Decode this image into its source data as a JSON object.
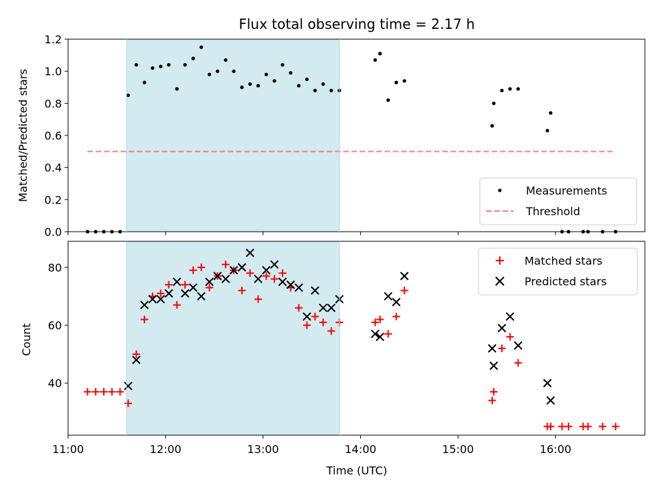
{
  "chart_data": [
    {
      "type": "scatter",
      "title": "Flux total observing time = 2.17 h",
      "xlabel": "",
      "ylabel": "Matched/Predicted stars",
      "xlim": [
        "11:00",
        "16:55"
      ],
      "ylim": [
        0,
        1.2
      ],
      "yticks": [
        0.0,
        0.2,
        0.4,
        0.6,
        0.8,
        1.0,
        1.2
      ],
      "ytick_labels": [
        "0.0",
        "0.2",
        "0.4",
        "0.6",
        "0.8",
        "1.0",
        "1.2"
      ],
      "grid": false,
      "shaded_interval": {
        "x0": "11:36",
        "x1": "13:47",
        "color": "#d3eaf0"
      },
      "threshold": {
        "name": "Threshold",
        "y": 0.5,
        "x0": "11:12",
        "x1": "16:35",
        "color": "#f08080"
      },
      "legend": {
        "placement": "lower-right"
      },
      "series": [
        {
          "name": "Measurements",
          "marker": "dot",
          "color": "#000000",
          "x": [
            "11:12",
            "11:17",
            "11:22",
            "11:27",
            "11:32",
            "11:37",
            "11:42",
            "11:47",
            "11:52",
            "11:57",
            "12:02",
            "12:07",
            "12:12",
            "12:17",
            "12:22",
            "12:27",
            "12:32",
            "12:37",
            "12:42",
            "12:47",
            "12:52",
            "12:57",
            "13:02",
            "13:07",
            "13:12",
            "13:17",
            "13:22",
            "13:27",
            "13:32",
            "13:37",
            "13:42",
            "13:47",
            "14:09",
            "14:12",
            "14:17",
            "14:22",
            "14:27",
            "15:21",
            "15:22",
            "15:27",
            "15:32",
            "15:37",
            "15:55",
            "15:57",
            "16:04",
            "16:08",
            "16:17",
            "16:20",
            "16:29",
            "16:37"
          ],
          "y": [
            0.0,
            0.0,
            0.0,
            0.0,
            0.0,
            0.85,
            1.04,
            0.93,
            1.02,
            1.03,
            1.04,
            0.89,
            1.04,
            1.08,
            1.15,
            0.98,
            1.0,
            1.07,
            1.0,
            0.9,
            0.92,
            0.91,
            0.98,
            0.94,
            1.04,
            0.99,
            0.91,
            0.95,
            0.88,
            0.92,
            0.88,
            0.88,
            1.07,
            1.11,
            0.82,
            0.93,
            0.94,
            0.66,
            0.8,
            0.88,
            0.89,
            0.89,
            0.63,
            0.74,
            0.0,
            0.0,
            0.0,
            0.0,
            0.0,
            0.0
          ]
        }
      ]
    },
    {
      "type": "scatter",
      "title": "",
      "xlabel": "Time (UTC)",
      "ylabel": "Count",
      "xlim": [
        "11:00",
        "16:55"
      ],
      "ylim": [
        22,
        89
      ],
      "xticks": [
        "11:00",
        "12:00",
        "13:00",
        "14:00",
        "15:00",
        "16:00"
      ],
      "yticks": [
        40,
        60,
        80
      ],
      "ytick_labels": [
        "40",
        "60",
        "80"
      ],
      "grid": false,
      "shaded_interval": {
        "x0": "11:36",
        "x1": "13:47",
        "color": "#d3eaf0"
      },
      "legend": {
        "placement": "upper-right"
      },
      "series": [
        {
          "name": "Matched stars",
          "marker": "plus",
          "color": "#ff0000",
          "x": [
            "11:12",
            "11:17",
            "11:22",
            "11:27",
            "11:32",
            "11:37",
            "11:42",
            "11:47",
            "11:52",
            "11:57",
            "12:02",
            "12:07",
            "12:12",
            "12:17",
            "12:22",
            "12:27",
            "12:32",
            "12:37",
            "12:42",
            "12:47",
            "12:52",
            "12:57",
            "13:02",
            "13:07",
            "13:12",
            "13:17",
            "13:22",
            "13:27",
            "13:32",
            "13:37",
            "13:42",
            "13:47",
            "14:09",
            "14:12",
            "14:17",
            "14:22",
            "14:27",
            "15:21",
            "15:22",
            "15:27",
            "15:32",
            "15:37",
            "15:55",
            "15:57",
            "16:04",
            "16:08",
            "16:17",
            "16:20",
            "16:29",
            "16:37"
          ],
          "y": [
            37,
            37,
            37,
            37,
            37,
            33,
            50,
            62,
            70,
            71,
            74,
            67,
            74,
            79,
            80,
            73,
            77,
            81,
            79,
            72,
            78,
            69,
            77,
            76,
            78,
            73,
            66,
            60,
            63,
            61,
            58,
            61,
            61,
            62,
            57,
            63,
            72,
            34,
            37,
            52,
            56,
            47,
            25,
            25,
            25,
            25,
            25,
            25,
            25,
            25
          ]
        },
        {
          "name": "Predicted stars",
          "marker": "x",
          "color": "#000000",
          "x": [
            "11:37",
            "11:42",
            "11:47",
            "11:52",
            "11:57",
            "12:02",
            "12:07",
            "12:12",
            "12:17",
            "12:22",
            "12:27",
            "12:32",
            "12:37",
            "12:42",
            "12:47",
            "12:52",
            "12:57",
            "13:02",
            "13:07",
            "13:12",
            "13:17",
            "13:22",
            "13:27",
            "13:32",
            "13:37",
            "13:42",
            "13:47",
            "14:09",
            "14:12",
            "14:17",
            "14:22",
            "14:27",
            "15:21",
            "15:22",
            "15:27",
            "15:32",
            "15:37",
            "15:55",
            "15:57"
          ],
          "y": [
            39,
            48,
            67,
            69,
            69,
            71,
            75,
            71,
            73,
            70,
            75,
            77,
            76,
            79,
            80,
            85,
            76,
            79,
            81,
            75,
            74,
            73,
            63,
            72,
            66,
            66,
            69,
            57,
            56,
            70,
            68,
            77,
            52,
            46,
            59,
            63,
            53,
            40,
            34
          ]
        }
      ]
    }
  ]
}
